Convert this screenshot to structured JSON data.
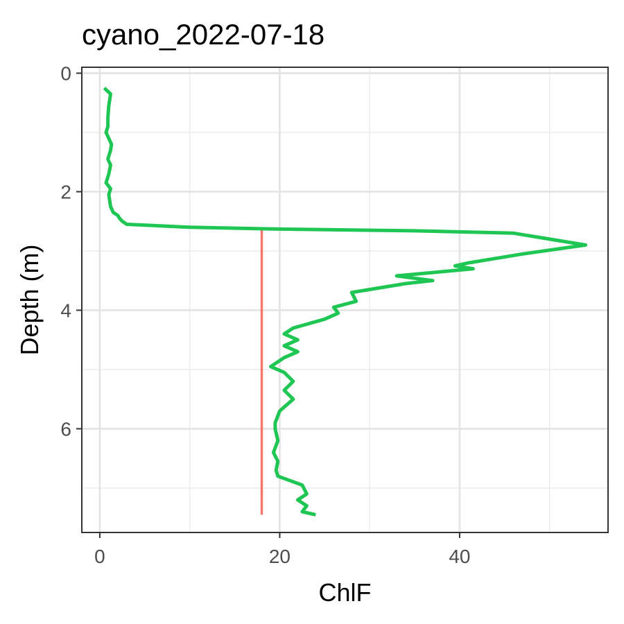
{
  "chart_data": {
    "type": "line",
    "title": "cyano_2022-07-18",
    "xlabel": "ChlF",
    "ylabel": "Depth (m)",
    "xlim": [
      -2,
      56.5
    ],
    "ylim": [
      7.75,
      -0.1
    ],
    "y_reversed": true,
    "x_ticks": [
      0,
      20,
      40
    ],
    "x_tick_labels": [
      "0",
      "20",
      "40"
    ],
    "y_ticks": [
      0,
      2,
      4,
      6
    ],
    "y_tick_labels": [
      "0",
      "2",
      "4",
      "6"
    ],
    "grid": true,
    "legend": "none",
    "series": [
      {
        "color": "#1fc653",
        "x": [
          0.5,
          1.2,
          1.0,
          0.9,
          0.9,
          0.7,
          1.0,
          1.3,
          1.2,
          0.9,
          1.2,
          1.0,
          0.7,
          1.2,
          1.0,
          1.1,
          1.2,
          1.5,
          2.0,
          2.2,
          2.5,
          3.0,
          10.0,
          20.0,
          35.0,
          46.0,
          50.0,
          54.0,
          47.0,
          41.0,
          39.5,
          41.5,
          38.0,
          33.0,
          35.0,
          37.0,
          34.0,
          28.0,
          28.5,
          26.0,
          26.5,
          25.0,
          21.5,
          20.5,
          22.0,
          20.5,
          22.0,
          20.5,
          19.0,
          20.5,
          21.5,
          20.5,
          21.5,
          20.0,
          19.5,
          19.5,
          19.8,
          19.3,
          19.8,
          19.6,
          19.8,
          22.5,
          23.0,
          22.0,
          23.0,
          22.5,
          24.0
        ],
        "y": [
          0.25,
          0.35,
          0.55,
          0.75,
          0.9,
          1.0,
          1.1,
          1.2,
          1.3,
          1.45,
          1.55,
          1.7,
          1.85,
          1.95,
          2.05,
          2.15,
          2.25,
          2.35,
          2.4,
          2.45,
          2.5,
          2.55,
          2.6,
          2.63,
          2.66,
          2.7,
          2.8,
          2.9,
          3.05,
          3.2,
          3.25,
          3.3,
          3.35,
          3.42,
          3.46,
          3.5,
          3.55,
          3.7,
          3.85,
          3.95,
          4.05,
          4.15,
          4.3,
          4.4,
          4.5,
          4.6,
          4.7,
          4.8,
          4.95,
          5.05,
          5.2,
          5.35,
          5.5,
          5.7,
          5.9,
          6.0,
          6.2,
          6.4,
          6.55,
          6.7,
          6.8,
          6.95,
          7.1,
          7.2,
          7.3,
          7.4,
          7.45
        ]
      },
      {
        "color": "#f8766d",
        "x": [
          18.0,
          18.0
        ],
        "y": [
          2.6,
          7.45
        ]
      }
    ]
  }
}
